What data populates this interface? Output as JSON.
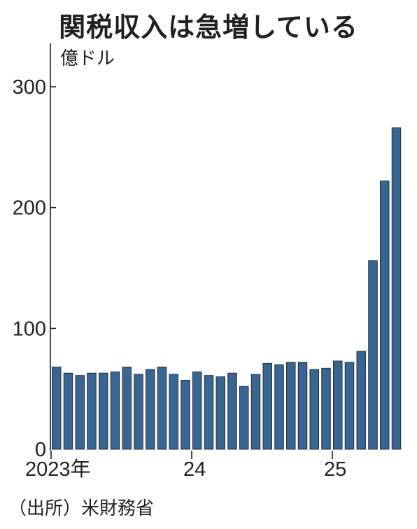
{
  "chart_data": {
    "type": "bar",
    "title": "関税収入は急増している",
    "ylabel": "億ドル",
    "xlabel": "",
    "ylim": [
      0,
      320
    ],
    "yticks": [
      "0",
      "100",
      "200",
      "300"
    ],
    "ytick_values": [
      0,
      100,
      200,
      300
    ],
    "x_tick_labels": [
      {
        "label": "2023年",
        "index": 0
      },
      {
        "label": "24",
        "index": 12
      },
      {
        "label": "25",
        "index": 24
      }
    ],
    "categories": [
      "2023-01",
      "2023-02",
      "2023-03",
      "2023-04",
      "2023-05",
      "2023-06",
      "2023-07",
      "2023-08",
      "2023-09",
      "2023-10",
      "2023-11",
      "2023-12",
      "2024-01",
      "2024-02",
      "2024-03",
      "2024-04",
      "2024-05",
      "2024-06",
      "2024-07",
      "2024-08",
      "2024-09",
      "2024-10",
      "2024-11",
      "2024-12",
      "2025-01",
      "2025-02",
      "2025-03",
      "2025-04",
      "2025-05",
      "2025-06"
    ],
    "values": [
      68,
      63,
      61,
      63,
      63,
      64,
      68,
      62,
      66,
      68,
      62,
      57,
      64,
      61,
      60,
      63,
      52,
      62,
      71,
      70,
      72,
      72,
      66,
      67,
      73,
      72,
      81,
      156,
      222,
      266
    ],
    "grid": false,
    "bar_color": "#3a6590",
    "source": "（出所）米財務省"
  }
}
